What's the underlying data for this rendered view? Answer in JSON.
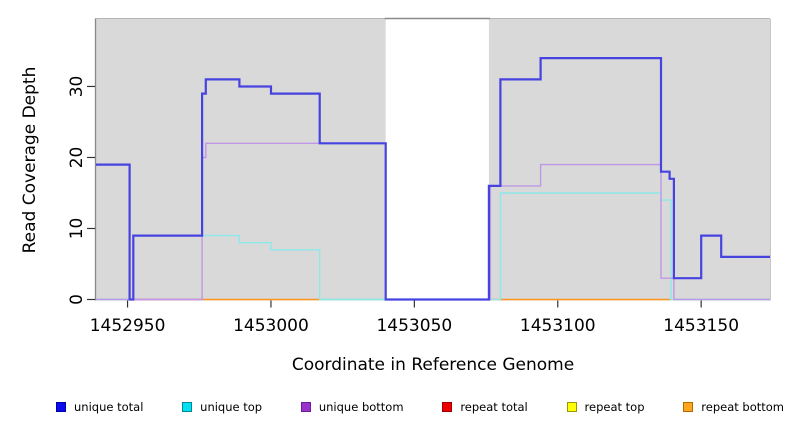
{
  "chart_data": {
    "type": "line",
    "subtype": "step-coverage-plot",
    "title": "",
    "xlabel": "Coordinate in Reference Genome",
    "ylabel": "Read Coverage Depth",
    "xlim": [
      1452939,
      1453174
    ],
    "ylim": [
      0,
      39.5
    ],
    "grid": false,
    "legend_position": "bottom",
    "plot_bg_color": "#d9d9d9",
    "gap_region": {
      "x_start": 1453040,
      "x_end": 1453076,
      "color": "#ffffff",
      "cap_color": "#8a8a8a"
    },
    "x_ticks": [
      1452950,
      1453000,
      1453050,
      1453100,
      1453150
    ],
    "y_ticks": [
      0,
      10,
      20,
      30
    ],
    "series": [
      {
        "name": "unique total",
        "line_color": "#4743e0",
        "line_width": 2.2,
        "steps": [
          [
            1452939,
            19
          ],
          [
            1452950.7,
            0
          ],
          [
            1452952,
            9
          ],
          [
            1452976,
            29
          ],
          [
            1452977.3,
            31
          ],
          [
            1452989,
            30
          ],
          [
            1453000,
            29
          ],
          [
            1453017,
            22
          ],
          [
            1453040,
            0
          ],
          [
            1453076,
            16
          ],
          [
            1453080,
            31
          ],
          [
            1453094,
            34
          ],
          [
            1453136,
            18
          ],
          [
            1453139,
            17
          ],
          [
            1453140.5,
            3
          ],
          [
            1453150,
            9
          ],
          [
            1453157,
            6
          ],
          [
            1453174,
            6
          ]
        ]
      },
      {
        "name": "unique top",
        "line_color": "#8de9e9",
        "line_width": 1.4,
        "steps": [
          [
            1452939,
            0
          ],
          [
            1452952,
            9
          ],
          [
            1452989,
            8
          ],
          [
            1453000,
            7
          ],
          [
            1453017,
            0
          ],
          [
            1453080,
            15
          ],
          [
            1453136,
            14
          ],
          [
            1453139.5,
            0
          ],
          [
            1453174,
            0
          ]
        ]
      },
      {
        "name": "unique bottom",
        "line_color": "#bf97e6",
        "line_width": 1.4,
        "steps": [
          [
            1452939,
            0
          ],
          [
            1452976,
            20
          ],
          [
            1452977.3,
            22
          ],
          [
            1453040,
            0
          ],
          [
            1453076.5,
            16
          ],
          [
            1453094,
            19
          ],
          [
            1453136,
            3
          ],
          [
            1453140.5,
            0
          ],
          [
            1453174,
            0
          ]
        ]
      },
      {
        "name": "repeat total",
        "line_color": "#dd6189",
        "line_width": 1.4,
        "steps": [
          [
            1452951,
            0
          ],
          [
            1452976,
            0
          ]
        ]
      },
      {
        "name": "repeat top",
        "line_color": "#90d092",
        "line_width": 1.4,
        "steps": [
          [
            1452939,
            0
          ],
          [
            1452951,
            0
          ],
          [
            1453017,
            0
          ],
          [
            1453040,
            0
          ],
          [
            1453139,
            0
          ],
          [
            1453174,
            0
          ]
        ]
      },
      {
        "name": "repeat bottom",
        "line_color": "#ff941f",
        "line_width": 1.4,
        "steps": [
          [
            1452976,
            0
          ],
          [
            1453017,
            0
          ],
          [
            1453076,
            0
          ],
          [
            1453139,
            0
          ]
        ]
      }
    ],
    "baseline_segments": [
      {
        "x_start": 1452939,
        "x_end": 1452951,
        "color": "#90d092"
      },
      {
        "x_start": 1452951,
        "x_end": 1452976,
        "color": "#dd6189"
      },
      {
        "x_start": 1452976,
        "x_end": 1453017,
        "color": "#ff941f"
      },
      {
        "x_start": 1453017,
        "x_end": 1453040,
        "color": "#90d092"
      },
      {
        "x_start": 1453076,
        "x_end": 1453139,
        "color": "#ff941f"
      },
      {
        "x_start": 1453139,
        "x_end": 1453174,
        "color": "#90d092"
      }
    ]
  },
  "axes": {
    "x_label": "Coordinate in Reference Genome",
    "y_label": "Read Coverage Depth"
  },
  "legend": {
    "items": [
      {
        "label": "unique total",
        "fill": "#0b0bee",
        "border": "#0000a8"
      },
      {
        "label": "unique top",
        "fill": "#00e0ee",
        "border": "#00899a"
      },
      {
        "label": "unique bottom",
        "fill": "#9933cc",
        "border": "#661f99"
      },
      {
        "label": "repeat total",
        "fill": "#ee0000",
        "border": "#990000"
      },
      {
        "label": "repeat top",
        "fill": "#ffff00",
        "border": "#9a9a00"
      },
      {
        "label": "repeat bottom",
        "fill": "#ffa51e",
        "border": "#b26b00"
      }
    ]
  }
}
